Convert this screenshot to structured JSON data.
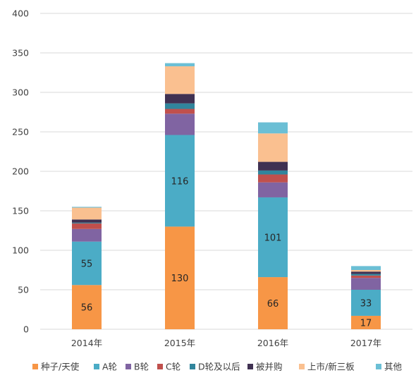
{
  "chart_data": {
    "type": "bar",
    "stacked": true,
    "title": "",
    "xlabel": "",
    "ylabel": "",
    "categories": [
      "2014年",
      "2015年",
      "2016年",
      "2017年"
    ],
    "ylim": [
      0,
      400
    ],
    "yticks": [
      0,
      50,
      100,
      150,
      200,
      250,
      300,
      350,
      400
    ],
    "grid": "horizontal",
    "legend_position": "bottom",
    "series": [
      {
        "name": "种子/天使",
        "color": "#f79646",
        "values": [
          56,
          130,
          66,
          17
        ],
        "labels": [
          "56",
          "130",
          "66",
          "17"
        ]
      },
      {
        "name": "A轮",
        "color": "#4bacc6",
        "values": [
          55,
          116,
          101,
          33
        ],
        "labels": [
          "55",
          "116",
          "101",
          "33"
        ]
      },
      {
        "name": "B轮",
        "color": "#8064a2",
        "values": [
          16,
          27,
          19,
          15
        ],
        "labels": [
          "",
          "",
          "",
          ""
        ]
      },
      {
        "name": "C轮",
        "color": "#c0504d",
        "values": [
          7,
          6,
          10,
          3
        ],
        "labels": [
          "",
          "",
          "",
          ""
        ]
      },
      {
        "name": "D轮及以后",
        "color": "#31859c",
        "values": [
          1,
          7,
          5,
          2
        ],
        "labels": [
          "",
          "",
          "",
          ""
        ]
      },
      {
        "name": "被并购",
        "color": "#403152",
        "values": [
          4,
          12,
          11,
          3
        ],
        "labels": [
          "",
          "",
          "",
          ""
        ]
      },
      {
        "name": "上市/新三板",
        "color": "#fac090",
        "values": [
          15,
          35,
          36,
          2
        ],
        "labels": [
          "",
          "",
          "",
          ""
        ]
      },
      {
        "name": "其他",
        "color": "#6bbfd5",
        "values": [
          1,
          4,
          14,
          5
        ],
        "labels": [
          "",
          "",
          "",
          ""
        ]
      }
    ]
  }
}
